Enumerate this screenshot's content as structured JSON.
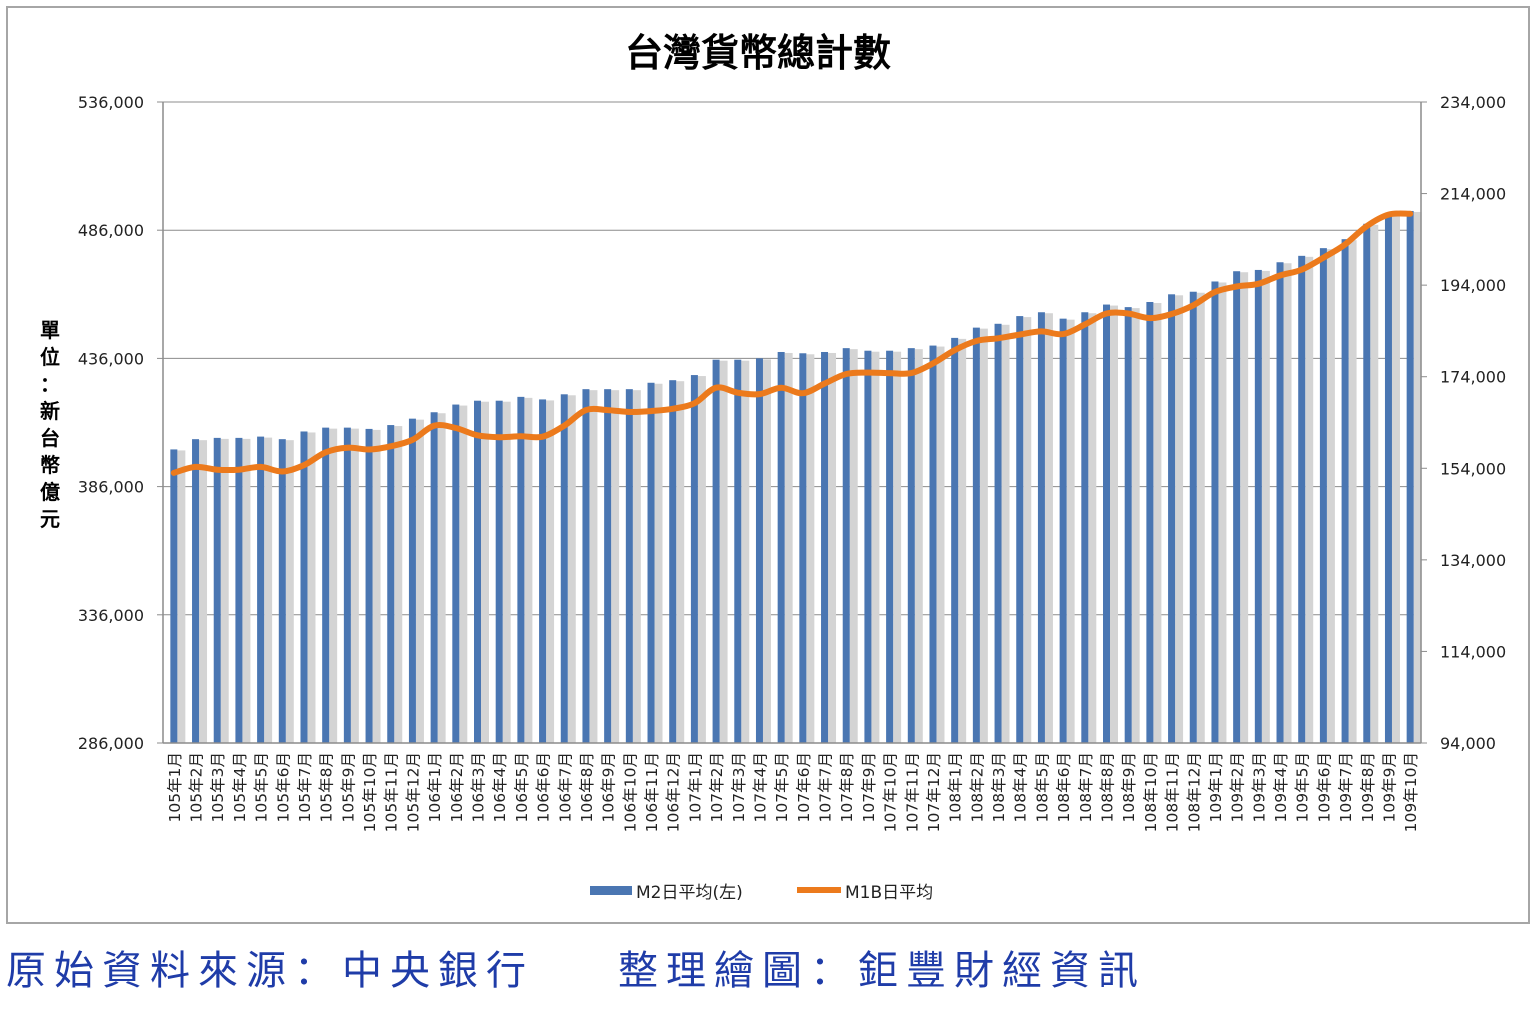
{
  "chart_data": {
    "type": "bar+line",
    "title": "台灣貨幣總計數",
    "ylabel": "單位：新台幣億元",
    "ylim_left": [
      286000,
      536000
    ],
    "ylim_right": [
      94000,
      234000
    ],
    "yticks_left": [
      "536,000",
      "486,000",
      "436,000",
      "386,000",
      "336,000",
      "286,000"
    ],
    "yticks_right": [
      "234,000",
      "214,000",
      "194,000",
      "174,000",
      "154,000",
      "134,000",
      "114,000",
      "94,000"
    ],
    "grid": true,
    "legend_position": "bottom",
    "categories": [
      "105年1月",
      "105年2月",
      "105年3月",
      "105年4月",
      "105年5月",
      "105年6月",
      "105年7月",
      "105年8月",
      "105年9月",
      "105年10月",
      "105年11月",
      "105年12月",
      "106年1月",
      "106年2月",
      "106年3月",
      "106年4月",
      "106年5月",
      "106年6月",
      "106年7月",
      "106年8月",
      "106年9月",
      "106年10月",
      "106年11月",
      "106年12月",
      "107年1月",
      "107年2月",
      "107年3月",
      "107年4月",
      "107年5月",
      "107年6月",
      "107年7月",
      "107年8月",
      "107年9月",
      "107年10月",
      "107年11月",
      "107年12月",
      "108年1月",
      "108年2月",
      "108年3月",
      "108年4月",
      "108年5月",
      "108年6月",
      "108年7月",
      "108年8月",
      "108年9月",
      "108年10月",
      "108年11月",
      "108年12月",
      "109年1月",
      "109年2月",
      "109年3月",
      "109年4月",
      "109年5月",
      "109年6月",
      "109年7月",
      "109年8月",
      "109年9月",
      "109年10月"
    ],
    "series": [
      {
        "name": "M2日平均(左)",
        "type": "bar",
        "axis": "left",
        "color": "#4a76b2",
        "values": [
          400500,
          404500,
          405000,
          405000,
          405500,
          404500,
          407500,
          409000,
          409000,
          408500,
          410000,
          412500,
          415000,
          418000,
          419500,
          419500,
          421000,
          420000,
          422000,
          424000,
          424000,
          424000,
          426500,
          427500,
          429500,
          435500,
          435500,
          436000,
          438500,
          438000,
          438500,
          440000,
          439000,
          439000,
          440000,
          441000,
          444000,
          448000,
          449500,
          452500,
          454000,
          451500,
          454000,
          457000,
          456000,
          458000,
          461000,
          462000,
          466000,
          470000,
          470500,
          473500,
          476000,
          479000,
          482500,
          488500,
          492500,
          493500
        ]
      },
      {
        "name": "M1B日平均",
        "type": "line",
        "axis": "right",
        "color": "#ec7a1c",
        "values": [
          153000,
          154300,
          153700,
          153700,
          154300,
          153300,
          154700,
          157500,
          158500,
          158100,
          158800,
          160200,
          163300,
          162800,
          161200,
          160800,
          161000,
          160900,
          163300,
          166700,
          166700,
          166300,
          166500,
          167000,
          168200,
          171600,
          170500,
          170200,
          171600,
          170400,
          172500,
          174600,
          174900,
          174800,
          174800,
          176900,
          179800,
          181800,
          182400,
          183200,
          183900,
          183300,
          185400,
          187800,
          187800,
          186800,
          187700,
          189600,
          192500,
          193700,
          194300,
          196100,
          197400,
          200000,
          202900,
          206900,
          209400,
          209600
        ]
      }
    ]
  },
  "footer": {
    "source": "原始資料來源：中央銀行",
    "maker": "整理繪圖：鉅豐財經資訊"
  }
}
